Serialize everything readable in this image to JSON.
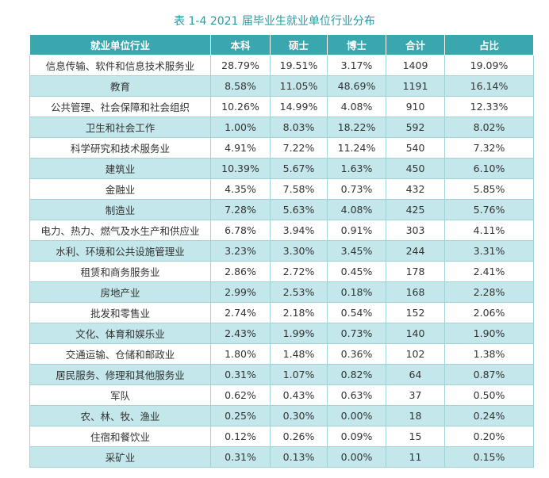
{
  "title": "表 1-4   2021 届毕业生就业单位行业分布",
  "table": {
    "header": [
      "就业单位行业",
      "本科",
      "硕士",
      "博士",
      "合计",
      "占比"
    ],
    "rows": [
      [
        "信息传输、软件和信息技术服务业",
        "28.79%",
        "19.51%",
        "3.17%",
        "1409",
        "19.09%"
      ],
      [
        "教育",
        "8.58%",
        "11.05%",
        "48.69%",
        "1191",
        "16.14%"
      ],
      [
        "公共管理、社会保障和社会组织",
        "10.26%",
        "14.99%",
        "4.08%",
        "910",
        "12.33%"
      ],
      [
        "卫生和社会工作",
        "1.00%",
        "8.03%",
        "18.22%",
        "592",
        "8.02%"
      ],
      [
        "科学研究和技术服务业",
        "4.91%",
        "7.22%",
        "11.24%",
        "540",
        "7.32%"
      ],
      [
        "建筑业",
        "10.39%",
        "5.67%",
        "1.63%",
        "450",
        "6.10%"
      ],
      [
        "金融业",
        "4.35%",
        "7.58%",
        "0.73%",
        "432",
        "5.85%"
      ],
      [
        "制造业",
        "7.28%",
        "5.63%",
        "4.08%",
        "425",
        "5.76%"
      ],
      [
        "电力、热力、燃气及水生产和供应业",
        "6.78%",
        "3.94%",
        "0.91%",
        "303",
        "4.11%"
      ],
      [
        "水利、环境和公共设施管理业",
        "3.23%",
        "3.30%",
        "3.45%",
        "244",
        "3.31%"
      ],
      [
        "租赁和商务服务业",
        "2.86%",
        "2.72%",
        "0.45%",
        "178",
        "2.41%"
      ],
      [
        "房地产业",
        "2.99%",
        "2.53%",
        "0.18%",
        "168",
        "2.28%"
      ],
      [
        "批发和零售业",
        "2.74%",
        "2.18%",
        "0.54%",
        "152",
        "2.06%"
      ],
      [
        "文化、体育和娱乐业",
        "2.43%",
        "1.99%",
        "0.73%",
        "140",
        "1.90%"
      ],
      [
        "交通运输、仓储和邮政业",
        "1.80%",
        "1.48%",
        "0.36%",
        "102",
        "1.38%"
      ],
      [
        "居民服务、修理和其他服务业",
        "0.31%",
        "1.07%",
        "0.82%",
        "64",
        "0.87%"
      ],
      [
        "军队",
        "0.62%",
        "0.43%",
        "0.63%",
        "37",
        "0.50%"
      ],
      [
        "农、林、牧、渔业",
        "0.25%",
        "0.30%",
        "0.00%",
        "18",
        "0.24%"
      ],
      [
        "住宿和餐饮业",
        "0.12%",
        "0.26%",
        "0.09%",
        "15",
        "0.20%"
      ],
      [
        "采矿业",
        "0.31%",
        "0.13%",
        "0.00%",
        "11",
        "0.15%"
      ]
    ]
  }
}
